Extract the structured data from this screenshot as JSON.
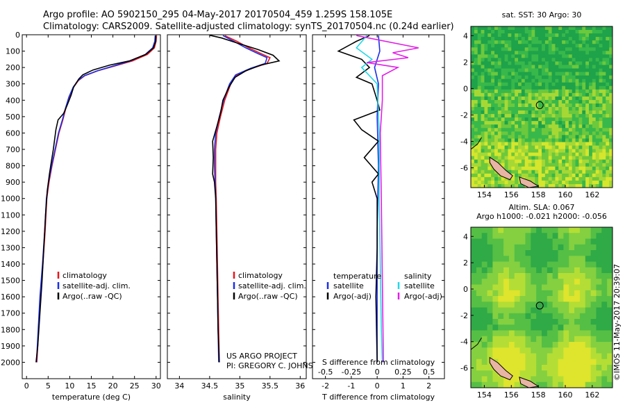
{
  "header": {
    "line1": "Argo profile: AO 5902150_295 04-May-2017 20170504_459 1.259S 158.105E",
    "line2": "Climatology: CARS2009. Satellite-adjusted climatology: synTS_20170504.nc (0.24d earlier)"
  },
  "colors": {
    "climatology": "#e8141c",
    "satellite": "#1a2ee6",
    "argo": "#000000",
    "sal_satellite": "#22d8e6",
    "sal_argo": "#e11ee6"
  },
  "depth_axis": {
    "ticks": [
      0,
      100,
      200,
      300,
      400,
      500,
      600,
      700,
      800,
      900,
      1000,
      1100,
      1200,
      1300,
      1400,
      1500,
      1600,
      1700,
      1800,
      1900,
      2000
    ],
    "range": [
      0,
      2100
    ]
  },
  "chart_data": [
    {
      "type": "line",
      "name": "temperature",
      "xlabel": "temperature (deg C)",
      "xlim": [
        -1,
        31
      ],
      "xticks": [
        0,
        5,
        10,
        15,
        20,
        25,
        30
      ],
      "legend": [
        "climatology",
        "satellite-adj. clim.",
        "Argo(..raw -QC)"
      ],
      "series": [
        {
          "name": "climatology",
          "color_key": "climatology",
          "points": [
            [
              30.1,
              5
            ],
            [
              30.0,
              40
            ],
            [
              29.6,
              80
            ],
            [
              28.0,
              120
            ],
            [
              24.5,
              160
            ],
            [
              20.5,
              190
            ],
            [
              16.5,
              220
            ],
            [
              13.5,
              250
            ],
            [
              12.0,
              280
            ],
            [
              10.9,
              320
            ],
            [
              9.9,
              380
            ],
            [
              9.1,
              450
            ],
            [
              8.4,
              520
            ],
            [
              7.5,
              600
            ],
            [
              6.7,
              700
            ],
            [
              5.9,
              800
            ],
            [
              5.2,
              900
            ],
            [
              4.7,
              1000
            ],
            [
              4.3,
              1200
            ],
            [
              3.8,
              1400
            ],
            [
              3.2,
              1600
            ],
            [
              2.8,
              1800
            ],
            [
              2.4,
              2000
            ]
          ]
        },
        {
          "name": "satellite",
          "color_key": "satellite",
          "points": [
            [
              29.8,
              5
            ],
            [
              29.7,
              40
            ],
            [
              29.2,
              80
            ],
            [
              27.5,
              120
            ],
            [
              24.0,
              160
            ],
            [
              20.2,
              190
            ],
            [
              16.4,
              220
            ],
            [
              13.4,
              250
            ],
            [
              11.9,
              280
            ],
            [
              10.8,
              320
            ],
            [
              9.8,
              380
            ],
            [
              9.0,
              450
            ],
            [
              8.3,
              520
            ],
            [
              7.4,
              600
            ],
            [
              6.6,
              700
            ],
            [
              5.8,
              800
            ],
            [
              5.1,
              900
            ],
            [
              4.6,
              1000
            ],
            [
              4.2,
              1200
            ],
            [
              3.7,
              1400
            ],
            [
              3.1,
              1600
            ],
            [
              2.7,
              1800
            ],
            [
              2.3,
              2000
            ]
          ]
        },
        {
          "name": "argo",
          "color_key": "argo",
          "points": [
            [
              29.9,
              5
            ],
            [
              29.9,
              40
            ],
            [
              29.4,
              80
            ],
            [
              27.6,
              120
            ],
            [
              23.8,
              160
            ],
            [
              19.3,
              185
            ],
            [
              15.4,
              215
            ],
            [
              13.0,
              245
            ],
            [
              12.1,
              270
            ],
            [
              10.9,
              320
            ],
            [
              10.3,
              370
            ],
            [
              9.4,
              430
            ],
            [
              8.6,
              480
            ],
            [
              7.3,
              520
            ],
            [
              6.8,
              580
            ],
            [
              6.2,
              700
            ],
            [
              5.6,
              800
            ],
            [
              5.3,
              850
            ],
            [
              4.8,
              950
            ],
            [
              4.4,
              1100
            ],
            [
              4.0,
              1300
            ],
            [
              3.6,
              1500
            ],
            [
              3.1,
              1700
            ],
            [
              2.6,
              1900
            ],
            [
              2.2,
              2000
            ]
          ]
        }
      ]
    },
    {
      "type": "line",
      "name": "salinity",
      "xlabel": "salinity",
      "xlim": [
        33.8,
        36.1
      ],
      "xticks": [
        34,
        34.5,
        35,
        35.5,
        36
      ],
      "legend": [
        "climatology",
        "satellite-adj. clim.",
        "Argo(..raw -QC)"
      ],
      "annotation": [
        "US ARGO PROJECT",
        "PI: GREGORY C. JOHNSON"
      ],
      "series": [
        {
          "name": "climatology",
          "color_key": "climatology",
          "points": [
            [
              34.75,
              5
            ],
            [
              34.95,
              40
            ],
            [
              35.15,
              80
            ],
            [
              35.35,
              115
            ],
            [
              35.5,
              140
            ],
            [
              35.45,
              175
            ],
            [
              35.2,
              205
            ],
            [
              34.95,
              245
            ],
            [
              34.85,
              300
            ],
            [
              34.75,
              400
            ],
            [
              34.68,
              500
            ],
            [
              34.62,
              600
            ],
            [
              34.6,
              700
            ],
            [
              34.6,
              800
            ],
            [
              34.6,
              900
            ],
            [
              34.61,
              1000
            ],
            [
              34.62,
              1200
            ],
            [
              34.63,
              1400
            ],
            [
              34.64,
              1600
            ],
            [
              34.65,
              1800
            ],
            [
              34.66,
              2000
            ]
          ]
        },
        {
          "name": "satellite",
          "color_key": "satellite",
          "points": [
            [
              34.72,
              5
            ],
            [
              34.9,
              40
            ],
            [
              35.1,
              80
            ],
            [
              35.3,
              115
            ],
            [
              35.45,
              140
            ],
            [
              35.42,
              175
            ],
            [
              35.18,
              205
            ],
            [
              34.93,
              245
            ],
            [
              34.83,
              300
            ],
            [
              34.73,
              400
            ],
            [
              34.66,
              500
            ],
            [
              34.6,
              600
            ],
            [
              34.58,
              700
            ],
            [
              34.58,
              800
            ],
            [
              34.59,
              900
            ],
            [
              34.6,
              1000
            ],
            [
              34.61,
              1200
            ],
            [
              34.62,
              1400
            ],
            [
              34.63,
              1600
            ],
            [
              34.64,
              1800
            ],
            [
              34.65,
              2000
            ]
          ]
        },
        {
          "name": "argo",
          "color_key": "argo",
          "points": [
            [
              34.5,
              3
            ],
            [
              34.7,
              20
            ],
            [
              34.95,
              50
            ],
            [
              35.3,
              90
            ],
            [
              35.55,
              125
            ],
            [
              35.65,
              160
            ],
            [
              35.35,
              185
            ],
            [
              35.1,
              220
            ],
            [
              34.92,
              260
            ],
            [
              34.82,
              320
            ],
            [
              34.72,
              400
            ],
            [
              34.68,
              480
            ],
            [
              34.62,
              560
            ],
            [
              34.55,
              650
            ],
            [
              34.56,
              750
            ],
            [
              34.55,
              850
            ],
            [
              34.58,
              900
            ],
            [
              34.6,
              1000
            ],
            [
              34.61,
              1200
            ],
            [
              34.62,
              1400
            ],
            [
              34.63,
              1600
            ],
            [
              34.64,
              1800
            ],
            [
              34.66,
              2000
            ]
          ]
        }
      ]
    },
    {
      "type": "line",
      "name": "differences",
      "xlabel": "T difference from climatology",
      "xlabel2": "S difference from climatology",
      "xlim": [
        -2.5,
        2.6
      ],
      "xticks": [
        -2,
        -1,
        0,
        1,
        2
      ],
      "xticks2": [
        -0.5,
        -0.25,
        0,
        0.25,
        0.5
      ],
      "xticks2_labels": [
        "-0.5",
        "-0.25",
        "0",
        "0.25",
        "0.5"
      ],
      "legend_left_title": "temperature",
      "legend_right_title": "salinity",
      "legend_left": [
        "satellite",
        "Argo(-adj)"
      ],
      "legend_right": [
        "satellite",
        "Argo(-adj)"
      ],
      "series": [
        {
          "name": "T satellite",
          "color_key": "satellite",
          "points": [
            [
              0.05,
              5
            ],
            [
              0.1,
              100
            ],
            [
              -0.1,
              200
            ],
            [
              0.05,
              300
            ],
            [
              0.0,
              500
            ],
            [
              0.05,
              800
            ],
            [
              0.0,
              1200
            ],
            [
              0.0,
              1600
            ],
            [
              0.0,
              2000
            ]
          ]
        },
        {
          "name": "T argo",
          "color_key": "argo",
          "points": [
            [
              -0.3,
              5
            ],
            [
              -0.8,
              40
            ],
            [
              -1.5,
              100
            ],
            [
              -0.6,
              150
            ],
            [
              -0.3,
              200
            ],
            [
              -0.8,
              260
            ],
            [
              -0.2,
              300
            ],
            [
              0.0,
              400
            ],
            [
              0.1,
              460
            ],
            [
              -0.9,
              520
            ],
            [
              -0.6,
              580
            ],
            [
              0.05,
              650
            ],
            [
              -0.5,
              750
            ],
            [
              0.05,
              850
            ],
            [
              -0.2,
              900
            ],
            [
              0.0,
              1000
            ],
            [
              0.0,
              1300
            ],
            [
              -0.05,
              1600
            ],
            [
              0.0,
              2000
            ]
          ]
        },
        {
          "name": "S satellite",
          "color_key": "sal_satellite",
          "points": [
            [
              -0.1,
              5
            ],
            [
              -0.2,
              80
            ],
            [
              -0.05,
              150
            ],
            [
              -0.15,
              200
            ],
            [
              0.0,
              300
            ],
            [
              0.02,
              600
            ],
            [
              0.02,
              1000
            ],
            [
              0.03,
              1400
            ],
            [
              0.04,
              1800
            ],
            [
              0.05,
              2000
            ]
          ]
        },
        {
          "name": "S argo",
          "color_key": "sal_argo",
          "points": [
            [
              -0.2,
              5
            ],
            [
              0.4,
              80
            ],
            [
              0.15,
              110
            ],
            [
              0.3,
              140
            ],
            [
              -0.1,
              170
            ],
            [
              0.2,
              200
            ],
            [
              0.05,
              250
            ],
            [
              0.05,
              400
            ],
            [
              0.03,
              600
            ],
            [
              0.04,
              1000
            ],
            [
              0.05,
              1500
            ],
            [
              0.06,
              2000
            ]
          ]
        }
      ]
    },
    {
      "type": "heatmap",
      "name": "sst-map",
      "title": "sat. SST: 30 Argo: 30",
      "xlim": [
        153,
        163.5
      ],
      "ylim": [
        -7.5,
        4.7
      ],
      "xticks": [
        154,
        156,
        158,
        160,
        162
      ],
      "yticks": [
        -6,
        -4,
        -2,
        0,
        2,
        4
      ],
      "marker": {
        "lon": 158.105,
        "lat": -1.259
      }
    },
    {
      "type": "heatmap",
      "name": "sla-map",
      "title": "Altim. SLA: 0.067",
      "subtitle": "Argo h1000: -0.021 h2000: -0.056",
      "xlim": [
        153,
        163.5
      ],
      "ylim": [
        -7.5,
        4.7
      ],
      "xticks": [
        154,
        156,
        158,
        160,
        162
      ],
      "yticks": [
        -6,
        -4,
        -2,
        0,
        2,
        4
      ],
      "marker": {
        "lon": 158.105,
        "lat": -1.259
      }
    }
  ],
  "footer": {
    "stamp": "©IMOS 11-May-2017 20:39:07"
  }
}
